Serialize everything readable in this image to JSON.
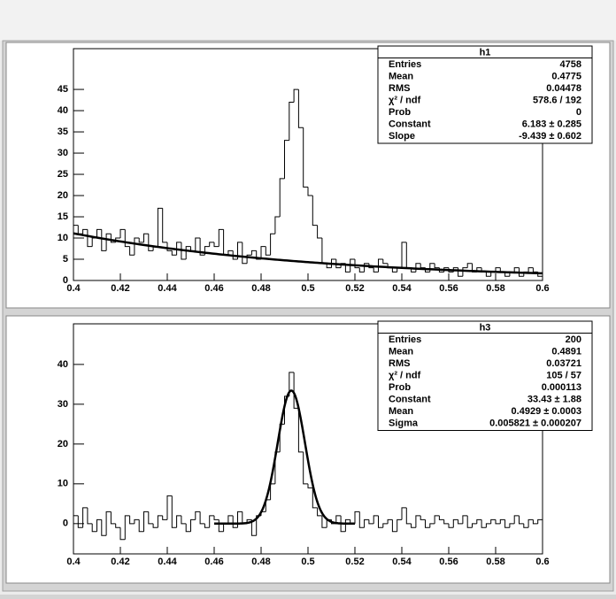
{
  "chart_data": [
    {
      "type": "histogram",
      "xlim": [
        0.4,
        0.6
      ],
      "xticks": [
        0.4,
        0.42,
        0.44,
        0.46,
        0.48,
        0.5,
        0.52,
        0.54,
        0.56,
        0.58,
        0.6
      ],
      "ylim": [
        0,
        54.6
      ],
      "yticks": [
        0,
        5,
        10,
        15,
        20,
        25,
        30,
        35,
        40,
        45
      ],
      "bins": [
        0.4,
        0.402,
        0.404,
        0.406,
        0.408,
        0.41,
        0.412,
        0.414,
        0.416,
        0.418,
        0.42,
        0.422,
        0.424,
        0.426,
        0.428,
        0.43,
        0.432,
        0.434,
        0.436,
        0.438,
        0.44,
        0.442,
        0.444,
        0.446,
        0.448,
        0.45,
        0.452,
        0.454,
        0.456,
        0.458,
        0.46,
        0.462,
        0.464,
        0.466,
        0.468,
        0.47,
        0.472,
        0.474,
        0.476,
        0.478,
        0.48,
        0.482,
        0.484,
        0.486,
        0.488,
        0.49,
        0.492,
        0.494,
        0.496,
        0.498,
        0.5,
        0.502,
        0.504,
        0.506,
        0.508,
        0.51,
        0.512,
        0.514,
        0.516,
        0.518,
        0.52,
        0.522,
        0.524,
        0.526,
        0.528,
        0.53,
        0.532,
        0.534,
        0.536,
        0.538,
        0.54,
        0.542,
        0.544,
        0.546,
        0.548,
        0.55,
        0.552,
        0.554,
        0.556,
        0.558,
        0.56,
        0.562,
        0.564,
        0.566,
        0.568,
        0.57,
        0.572,
        0.574,
        0.576,
        0.578,
        0.58,
        0.582,
        0.584,
        0.586,
        0.588,
        0.59,
        0.592,
        0.594,
        0.596,
        0.598,
        0.6
      ],
      "values": [
        13,
        11,
        12,
        8,
        10,
        12,
        7,
        11,
        9,
        10,
        12,
        8,
        6,
        10,
        9,
        11,
        7,
        8,
        17,
        9,
        7,
        6,
        9,
        5,
        8,
        7,
        10,
        6,
        8,
        9,
        8,
        12,
        6,
        7,
        5,
        9,
        4,
        6,
        7,
        5,
        8,
        6,
        11,
        15,
        24,
        33,
        42,
        45,
        36,
        22,
        20,
        13,
        10,
        4,
        3,
        5,
        3,
        4,
        2,
        5,
        3,
        2,
        4,
        3,
        2,
        5,
        4,
        3,
        2,
        3,
        9,
        3,
        2,
        4,
        3,
        2,
        4,
        3,
        2,
        3,
        2,
        3,
        1,
        3,
        4,
        2,
        3,
        2,
        1,
        2,
        3,
        2,
        1,
        2,
        3,
        1,
        2,
        3,
        2,
        1
      ],
      "color": "#000000",
      "fit": {
        "function": "expo",
        "range": [
          0.4,
          0.6
        ],
        "params": [
          6.183,
          -9.439
        ],
        "color": "#000000"
      },
      "stats": {
        "title": "h1",
        "rows": [
          [
            "Entries",
            "4758"
          ],
          [
            "Mean",
            "0.4775"
          ],
          [
            "RMS",
            "0.04478"
          ],
          [
            "χ² / ndf",
            "578.6 / 192"
          ],
          [
            "Prob",
            "0"
          ],
          [
            "Constant",
            "6.183 ± 0.285"
          ],
          [
            "Slope",
            "-9.439 ± 0.602"
          ]
        ]
      }
    },
    {
      "type": "histogram",
      "xlim": [
        0.4,
        0.6
      ],
      "xticks": [
        0.4,
        0.42,
        0.44,
        0.46,
        0.48,
        0.5,
        0.52,
        0.54,
        0.56,
        0.58,
        0.6
      ],
      "ylim": [
        -7.6,
        50.2
      ],
      "yticks": [
        0,
        10,
        20,
        30,
        40
      ],
      "bins": [
        0.4,
        0.402,
        0.404,
        0.406,
        0.408,
        0.41,
        0.412,
        0.414,
        0.416,
        0.418,
        0.42,
        0.422,
        0.424,
        0.426,
        0.428,
        0.43,
        0.432,
        0.434,
        0.436,
        0.438,
        0.44,
        0.442,
        0.444,
        0.446,
        0.448,
        0.45,
        0.452,
        0.454,
        0.456,
        0.458,
        0.46,
        0.462,
        0.464,
        0.466,
        0.468,
        0.47,
        0.472,
        0.474,
        0.476,
        0.478,
        0.48,
        0.482,
        0.484,
        0.486,
        0.488,
        0.49,
        0.492,
        0.494,
        0.496,
        0.498,
        0.5,
        0.502,
        0.504,
        0.506,
        0.508,
        0.51,
        0.512,
        0.514,
        0.516,
        0.518,
        0.52,
        0.522,
        0.524,
        0.526,
        0.528,
        0.53,
        0.532,
        0.534,
        0.536,
        0.538,
        0.54,
        0.542,
        0.544,
        0.546,
        0.548,
        0.55,
        0.552,
        0.554,
        0.556,
        0.558,
        0.56,
        0.562,
        0.564,
        0.566,
        0.568,
        0.57,
        0.572,
        0.574,
        0.576,
        0.578,
        0.58,
        0.582,
        0.584,
        0.586,
        0.588,
        0.59,
        0.592,
        0.594,
        0.596,
        0.598,
        0.6
      ],
      "values": [
        2,
        -1,
        4,
        0,
        -2,
        1,
        -3,
        3,
        0,
        -1,
        -4,
        2,
        0,
        1,
        -2,
        3,
        0,
        -1,
        2,
        1,
        7,
        -1,
        2,
        0,
        -2,
        1,
        3,
        0,
        -1,
        2,
        1,
        -2,
        0,
        2,
        -1,
        3,
        0,
        1,
        -3,
        2,
        3,
        6,
        10,
        18,
        25,
        32,
        38,
        29,
        18,
        10,
        9,
        4,
        2,
        -1,
        1,
        0,
        2,
        -2,
        1,
        0,
        3,
        -1,
        1,
        0,
        2,
        -1,
        0,
        1,
        -2,
        1,
        4,
        0,
        -1,
        2,
        1,
        -1,
        0,
        2,
        1,
        0,
        -1,
        1,
        0,
        2,
        -1,
        0,
        1,
        -1,
        0,
        1,
        0,
        1,
        -1,
        0,
        2,
        0,
        -1,
        1,
        0,
        1
      ],
      "color": "#000000",
      "fit": {
        "function": "gaus",
        "range": [
          0.46,
          0.52
        ],
        "params": [
          33.43,
          0.4929,
          0.005821
        ],
        "color": "#000000"
      },
      "stats": {
        "title": "h3",
        "rows": [
          [
            "Entries",
            "200"
          ],
          [
            "Mean",
            "0.4891"
          ],
          [
            "RMS",
            "0.03721"
          ],
          [
            "χ² / ndf",
            "105 / 57"
          ],
          [
            "Prob",
            "0.000113"
          ],
          [
            "Constant",
            "33.43 ± 1.88"
          ],
          [
            "Mean",
            "0.4929 ± 0.0003"
          ],
          [
            "Sigma",
            "0.005821 ± 0.000207"
          ]
        ]
      }
    }
  ]
}
